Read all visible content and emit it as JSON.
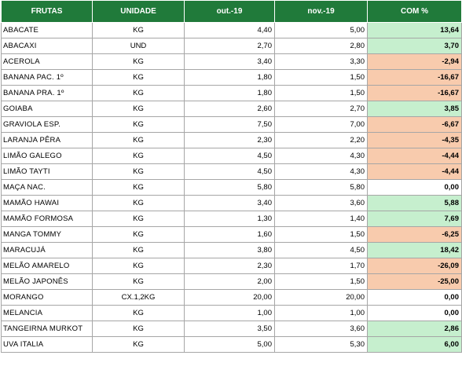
{
  "header": {
    "col_fruit": "FRUTAS",
    "col_unit": "UNIDADE",
    "col_oct": "out.-19",
    "col_nov": "nov.-19",
    "col_pct": "COM %"
  },
  "colors": {
    "header_bg": "#207a3a",
    "positive_bg": "#c6efce",
    "negative_bg": "#f8cbad"
  },
  "rows": [
    {
      "name": "ABACATE",
      "unit": "KG",
      "oct": "4,40",
      "nov": "5,00",
      "pct": "13,64",
      "trend": "pos"
    },
    {
      "name": "ABACAXI",
      "unit": "UND",
      "oct": "2,70",
      "nov": "2,80",
      "pct": "3,70",
      "trend": "pos"
    },
    {
      "name": "ACEROLA",
      "unit": "KG",
      "oct": "3,40",
      "nov": "3,30",
      "pct": "-2,94",
      "trend": "neg"
    },
    {
      "name": "BANANA PAC. 1º",
      "unit": "KG",
      "oct": "1,80",
      "nov": "1,50",
      "pct": "-16,67",
      "trend": "neg"
    },
    {
      "name": "BANANA PRA. 1º",
      "unit": "KG",
      "oct": "1,80",
      "nov": "1,50",
      "pct": "-16,67",
      "trend": "neg"
    },
    {
      "name": "GOIABA",
      "unit": "KG",
      "oct": "2,60",
      "nov": "2,70",
      "pct": "3,85",
      "trend": "pos"
    },
    {
      "name": "GRAVIOLA ESP.",
      "unit": "KG",
      "oct": "7,50",
      "nov": "7,00",
      "pct": "-6,67",
      "trend": "neg"
    },
    {
      "name": "LARANJA PÊRA",
      "unit": "KG",
      "oct": "2,30",
      "nov": "2,20",
      "pct": "-4,35",
      "trend": "neg"
    },
    {
      "name": "LIMÃO GALEGO",
      "unit": "KG",
      "oct": "4,50",
      "nov": "4,30",
      "pct": "-4,44",
      "trend": "neg"
    },
    {
      "name": "LIMÃO TAYTI",
      "unit": "KG",
      "oct": "4,50",
      "nov": "4,30",
      "pct": "-4,44",
      "trend": "neg"
    },
    {
      "name": "MAÇA NAC.",
      "unit": "KG",
      "oct": "5,80",
      "nov": "5,80",
      "pct": "0,00",
      "trend": "zero"
    },
    {
      "name": "MAMÃO HAWAI",
      "unit": "KG",
      "oct": "3,40",
      "nov": "3,60",
      "pct": "5,88",
      "trend": "pos"
    },
    {
      "name": "MAMÃO FORMOSA",
      "unit": "KG",
      "oct": "1,30",
      "nov": "1,40",
      "pct": "7,69",
      "trend": "pos"
    },
    {
      "name": "MANGA TOMMY",
      "unit": "KG",
      "oct": "1,60",
      "nov": "1,50",
      "pct": "-6,25",
      "trend": "neg"
    },
    {
      "name": "MARACUJÁ",
      "unit": "KG",
      "oct": "3,80",
      "nov": "4,50",
      "pct": "18,42",
      "trend": "pos"
    },
    {
      "name": "MELÃO AMARELO",
      "unit": "KG",
      "oct": "2,30",
      "nov": "1,70",
      "pct": "-26,09",
      "trend": "neg"
    },
    {
      "name": "MELÃO JAPONÊS",
      "unit": "KG",
      "oct": "2,00",
      "nov": "1,50",
      "pct": "-25,00",
      "trend": "neg"
    },
    {
      "name": "MORANGO",
      "unit": "CX.1,2KG",
      "oct": "20,00",
      "nov": "20,00",
      "pct": "0,00",
      "trend": "zero"
    },
    {
      "name": "MELANCIA",
      "unit": "KG",
      "oct": "1,00",
      "nov": "1,00",
      "pct": "0,00",
      "trend": "zero"
    },
    {
      "name": "TANGEIRNA MURKOT",
      "unit": "KG",
      "oct": "3,50",
      "nov": "3,60",
      "pct": "2,86",
      "trend": "pos"
    },
    {
      "name": "UVA ITALIA",
      "unit": "KG",
      "oct": "5,00",
      "nov": "5,30",
      "pct": "6,00",
      "trend": "pos"
    }
  ]
}
